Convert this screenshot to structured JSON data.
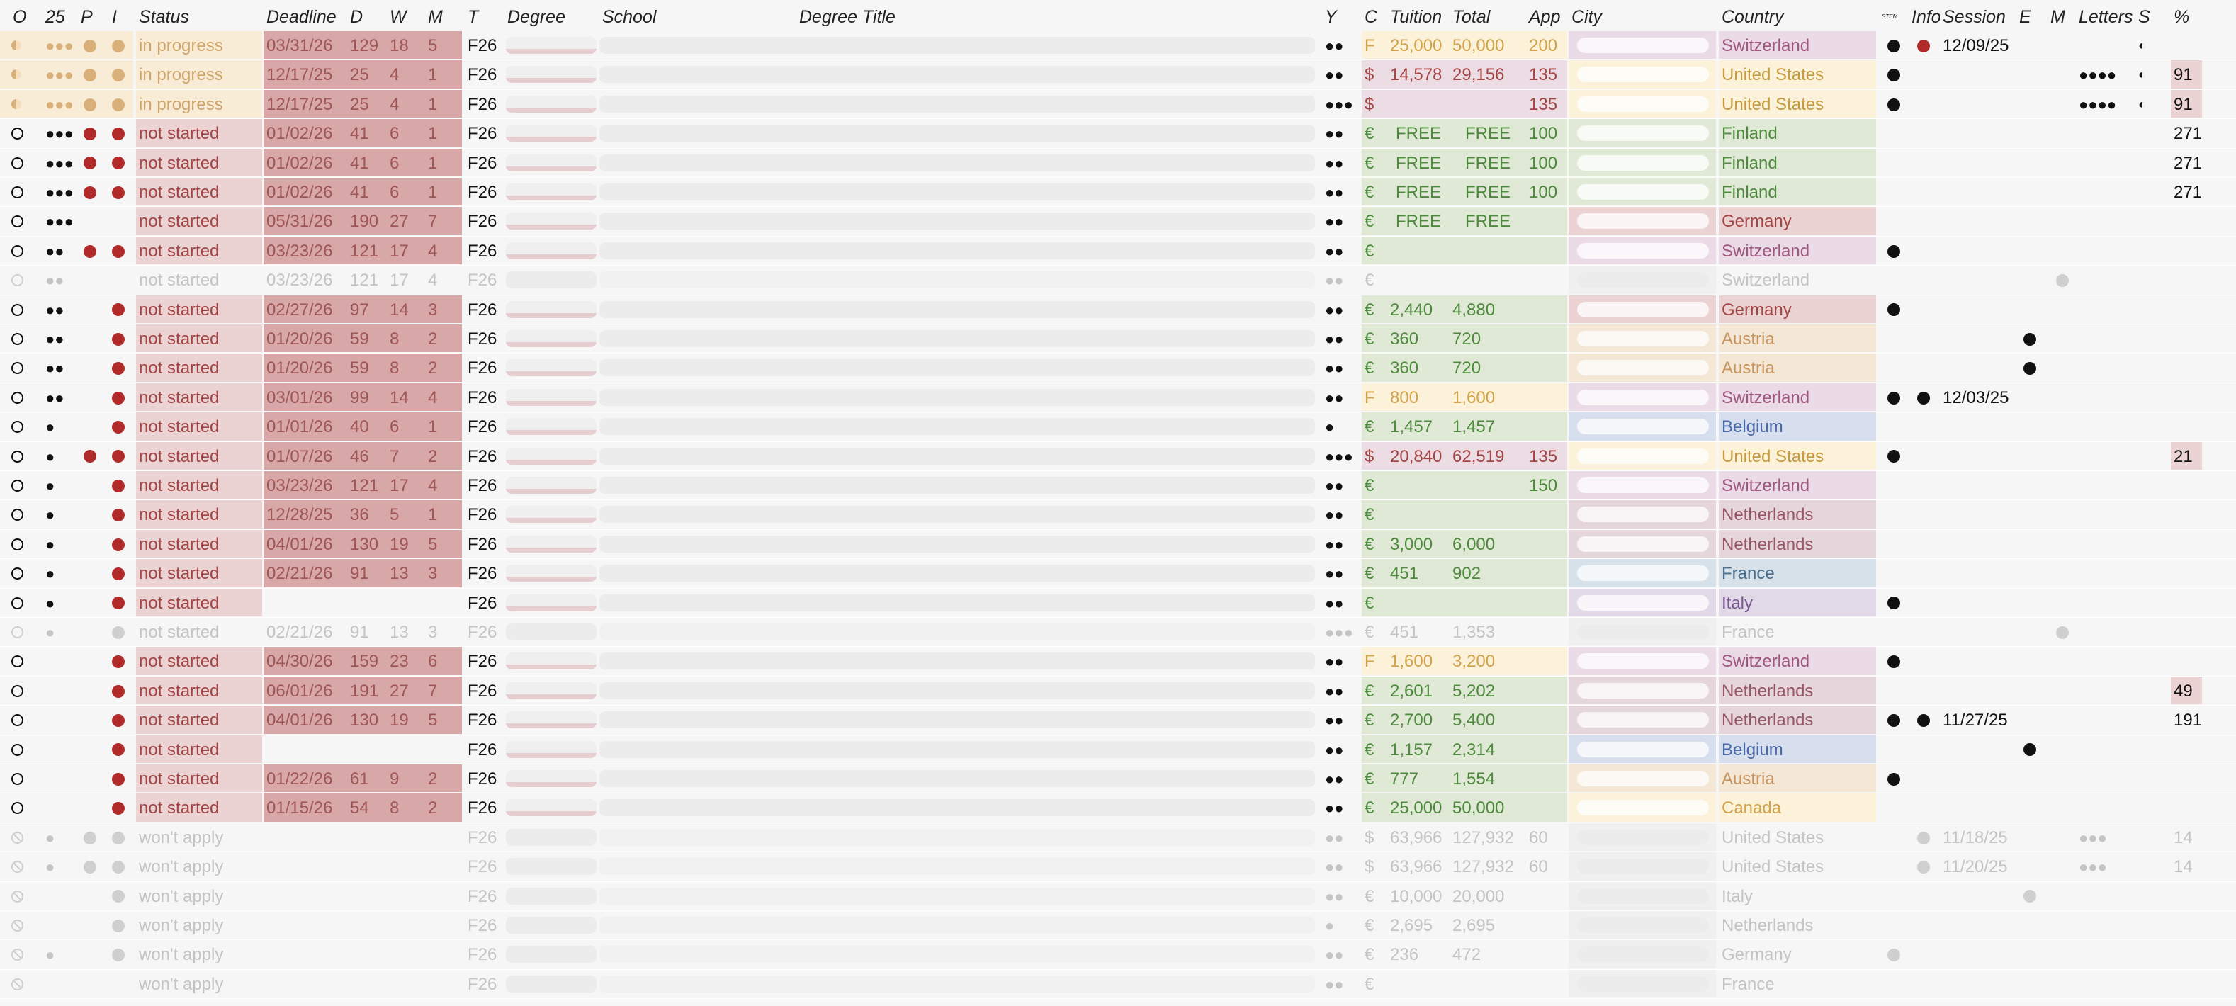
{
  "headers": [
    "O",
    "25",
    "P",
    "I",
    "Status",
    "Deadline",
    "D",
    "W",
    "M",
    "T",
    "Degree",
    "School",
    "Degree Title",
    "Y",
    "C",
    "Tuition",
    "Total",
    "App",
    "City",
    "Country",
    "STEM",
    "Info",
    "Session",
    "E",
    "M",
    "Letters",
    "S",
    "%"
  ],
  "colors": {
    "in_progress_bg": "#f8ecd7",
    "in_progress_text": "#cfa56a",
    "not_started_bg": "#ebd2d3",
    "not_started_text": "#a34545",
    "deadline_bg": "#d8a7a7",
    "green_bg": "#dfe9d5",
    "green_text": "#4e8a3d",
    "yellow_bg": "#fbf2d9",
    "yellow_text": "#d2a34b",
    "pink_bg": "#ecdde4",
    "red_dot": "#b02a2a",
    "tan_dot": "#d9b07a",
    "muted": "#c8c8c8",
    "switzerland_bg": "#eadbe6",
    "us_bg": "#fbf2d9",
    "finland_bg": "#dfe9d5",
    "germany_bg": "#ecd3d3",
    "austria_bg": "#f4e7d6",
    "belgium_bg": "#d7deee",
    "netherlands_bg": "#e5d6db",
    "france_bg": "#d7e1ea",
    "italy_bg": "#e2d9e8",
    "canada_bg": "#fbf2d9"
  },
  "rows": [
    {
      "o": "half-tan",
      "r25": "●●●",
      "p": "tan",
      "i": "tan",
      "status": "in progress",
      "kind": "ip",
      "deadline": "03/31/26",
      "d": "129",
      "w": "18",
      "m": "5",
      "t": "F26",
      "y": "●●",
      "c": "F",
      "tuition": "25,000",
      "total": "50,000",
      "app": "200",
      "country": "Switzerland",
      "country_key": "switzerland_bg",
      "stem": "●",
      "info": "red",
      "session": "12/09/25",
      "e": "",
      "mm": "",
      "letters": "",
      "s": "◐",
      "pct": "",
      "money": "yellow"
    },
    {
      "o": "half-tan",
      "r25": "●●●",
      "p": "tan",
      "i": "tan",
      "status": "in progress",
      "kind": "ip",
      "deadline": "12/17/25",
      "d": "25",
      "w": "4",
      "m": "1",
      "t": "F26",
      "y": "●●",
      "c": "$",
      "tuition": "14,578",
      "total": "29,156",
      "app": "135",
      "country": "United States",
      "country_key": "us_bg",
      "stem": "●",
      "info": "",
      "session": "",
      "e": "",
      "mm": "",
      "letters": "●●●●",
      "s": "◐",
      "pct": "91",
      "money": "pink"
    },
    {
      "o": "half-tan",
      "r25": "●●●",
      "p": "tan",
      "i": "tan",
      "status": "in progress",
      "kind": "ip",
      "deadline": "12/17/25",
      "d": "25",
      "w": "4",
      "m": "1",
      "t": "F26",
      "y": "●●●",
      "c": "$",
      "tuition": "",
      "total": "",
      "app": "135",
      "country": "United States",
      "country_key": "us_bg",
      "stem": "●",
      "info": "",
      "session": "",
      "e": "",
      "mm": "",
      "letters": "●●●●",
      "s": "◐",
      "pct": "91",
      "money": "pink"
    },
    {
      "o": "ring",
      "r25": "●●●",
      "p": "red",
      "i": "red",
      "status": "not started",
      "kind": "ns",
      "deadline": "01/02/26",
      "d": "41",
      "w": "6",
      "m": "1",
      "t": "F26",
      "y": "●●",
      "c": "€",
      "tuition": "FREE",
      "total": "FREE",
      "app": "100",
      "country": "Finland",
      "country_key": "finland_bg",
      "stem": "",
      "info": "",
      "session": "",
      "e": "",
      "mm": "",
      "letters": "",
      "s": "",
      "pct": "271",
      "money": "green"
    },
    {
      "o": "ring",
      "r25": "●●●",
      "p": "red",
      "i": "red",
      "status": "not started",
      "kind": "ns",
      "deadline": "01/02/26",
      "d": "41",
      "w": "6",
      "m": "1",
      "t": "F26",
      "y": "●●",
      "c": "€",
      "tuition": "FREE",
      "total": "FREE",
      "app": "100",
      "country": "Finland",
      "country_key": "finland_bg",
      "stem": "",
      "info": "",
      "session": "",
      "e": "",
      "mm": "",
      "letters": "",
      "s": "",
      "pct": "271",
      "money": "green"
    },
    {
      "o": "ring",
      "r25": "●●●",
      "p": "red",
      "i": "red",
      "status": "not started",
      "kind": "ns",
      "deadline": "01/02/26",
      "d": "41",
      "w": "6",
      "m": "1",
      "t": "F26",
      "y": "●●",
      "c": "€",
      "tuition": "FREE",
      "total": "FREE",
      "app": "100",
      "country": "Finland",
      "country_key": "finland_bg",
      "stem": "",
      "info": "",
      "session": "",
      "e": "",
      "mm": "",
      "letters": "",
      "s": "",
      "pct": "271",
      "money": "green"
    },
    {
      "o": "ring",
      "r25": "●●●",
      "p": "",
      "i": "",
      "status": "not started",
      "kind": "ns",
      "deadline": "05/31/26",
      "d": "190",
      "w": "27",
      "m": "7",
      "t": "F26",
      "y": "●●",
      "c": "€",
      "tuition": "FREE",
      "total": "FREE",
      "app": "",
      "country": "Germany",
      "country_key": "germany_bg",
      "stem": "",
      "info": "",
      "session": "",
      "e": "",
      "mm": "",
      "letters": "",
      "s": "",
      "pct": "",
      "money": "green"
    },
    {
      "o": "ring",
      "r25": "●●",
      "p": "red",
      "i": "red",
      "status": "not started",
      "kind": "ns",
      "deadline": "03/23/26",
      "d": "121",
      "w": "17",
      "m": "4",
      "t": "F26",
      "y": "●●",
      "c": "€",
      "tuition": "",
      "total": "",
      "app": "",
      "country": "Switzerland",
      "country_key": "switzerland_bg",
      "stem": "●",
      "info": "",
      "session": "",
      "e": "",
      "mm": "",
      "letters": "",
      "s": "",
      "pct": "",
      "money": "green"
    },
    {
      "o": "ring-muted",
      "r25": "●●",
      "p": "",
      "i": "",
      "status": "not started",
      "kind": "muted",
      "deadline": "03/23/26",
      "d": "121",
      "w": "17",
      "m": "4",
      "t": "F26",
      "y": "●●",
      "c": "€",
      "tuition": "",
      "total": "",
      "app": "",
      "country": "Switzerland",
      "country_key": "",
      "stem": "",
      "info": "",
      "session": "",
      "e": "",
      "mm": "●",
      "letters": "",
      "s": "",
      "pct": "",
      "money": "none"
    },
    {
      "o": "ring",
      "r25": "●●",
      "p": "",
      "i": "red",
      "status": "not started",
      "kind": "ns",
      "deadline": "02/27/26",
      "d": "97",
      "w": "14",
      "m": "3",
      "t": "F26",
      "y": "●●",
      "c": "€",
      "tuition": "2,440",
      "total": "4,880",
      "app": "",
      "country": "Germany",
      "country_key": "germany_bg",
      "stem": "●",
      "info": "",
      "session": "",
      "e": "",
      "mm": "",
      "letters": "",
      "s": "",
      "pct": "",
      "money": "green"
    },
    {
      "o": "ring",
      "r25": "●●",
      "p": "",
      "i": "red",
      "status": "not started",
      "kind": "ns",
      "deadline": "01/20/26",
      "d": "59",
      "w": "8",
      "m": "2",
      "t": "F26",
      "y": "●●",
      "c": "€",
      "tuition": "360",
      "total": "720",
      "app": "",
      "country": "Austria",
      "country_key": "austria_bg",
      "stem": "",
      "info": "",
      "session": "",
      "e": "●",
      "mm": "",
      "letters": "",
      "s": "",
      "pct": "",
      "money": "green"
    },
    {
      "o": "ring",
      "r25": "●●",
      "p": "",
      "i": "red",
      "status": "not started",
      "kind": "ns",
      "deadline": "01/20/26",
      "d": "59",
      "w": "8",
      "m": "2",
      "t": "F26",
      "y": "●●",
      "c": "€",
      "tuition": "360",
      "total": "720",
      "app": "",
      "country": "Austria",
      "country_key": "austria_bg",
      "stem": "",
      "info": "",
      "session": "",
      "e": "●",
      "mm": "",
      "letters": "",
      "s": "",
      "pct": "",
      "money": "green"
    },
    {
      "o": "ring",
      "r25": "●●",
      "p": "",
      "i": "red",
      "status": "not started",
      "kind": "ns",
      "deadline": "03/01/26",
      "d": "99",
      "w": "14",
      "m": "4",
      "t": "F26",
      "y": "●●",
      "c": "F",
      "tuition": "800",
      "total": "1,600",
      "app": "",
      "country": "Switzerland",
      "country_key": "switzerland_bg",
      "stem": "●",
      "info": "black",
      "session": "12/03/25",
      "e": "",
      "mm": "",
      "letters": "",
      "s": "",
      "pct": "",
      "money": "yellow"
    },
    {
      "o": "ring",
      "r25": "●",
      "p": "",
      "i": "red",
      "status": "not started",
      "kind": "ns",
      "deadline": "01/01/26",
      "d": "40",
      "w": "6",
      "m": "1",
      "t": "F26",
      "y": "●",
      "c": "€",
      "tuition": "1,457",
      "total": "1,457",
      "app": "",
      "country": "Belgium",
      "country_key": "belgium_bg",
      "stem": "",
      "info": "",
      "session": "",
      "e": "",
      "mm": "",
      "letters": "",
      "s": "",
      "pct": "",
      "money": "green"
    },
    {
      "o": "ring",
      "r25": "●",
      "p": "red",
      "i": "red",
      "status": "not started",
      "kind": "ns",
      "deadline": "01/07/26",
      "d": "46",
      "w": "7",
      "m": "2",
      "t": "F26",
      "y": "●●●",
      "c": "$",
      "tuition": "20,840",
      "total": "62,519",
      "app": "135",
      "country": "United States",
      "country_key": "us_bg",
      "stem": "●",
      "info": "",
      "session": "",
      "e": "",
      "mm": "",
      "letters": "",
      "s": "",
      "pct": "21",
      "money": "pink"
    },
    {
      "o": "ring",
      "r25": "●",
      "p": "",
      "i": "red",
      "status": "not started",
      "kind": "ns",
      "deadline": "03/23/26",
      "d": "121",
      "w": "17",
      "m": "4",
      "t": "F26",
      "y": "●●",
      "c": "€",
      "tuition": "",
      "total": "",
      "app": "150",
      "country": "Switzerland",
      "country_key": "switzerland_bg",
      "stem": "",
      "info": "",
      "session": "",
      "e": "",
      "mm": "",
      "letters": "",
      "s": "",
      "pct": "",
      "money": "green"
    },
    {
      "o": "ring",
      "r25": "●",
      "p": "",
      "i": "red",
      "status": "not started",
      "kind": "ns",
      "deadline": "12/28/25",
      "d": "36",
      "w": "5",
      "m": "1",
      "t": "F26",
      "y": "●●",
      "c": "€",
      "tuition": "",
      "total": "",
      "app": "",
      "country": "Netherlands",
      "country_key": "netherlands_bg",
      "stem": "",
      "info": "",
      "session": "",
      "e": "",
      "mm": "",
      "letters": "",
      "s": "",
      "pct": "",
      "money": "green"
    },
    {
      "o": "ring",
      "r25": "●",
      "p": "",
      "i": "red",
      "status": "not started",
      "kind": "ns",
      "deadline": "04/01/26",
      "d": "130",
      "w": "19",
      "m": "5",
      "t": "F26",
      "y": "●●",
      "c": "€",
      "tuition": "3,000",
      "total": "6,000",
      "app": "",
      "country": "Netherlands",
      "country_key": "netherlands_bg",
      "stem": "",
      "info": "",
      "session": "",
      "e": "",
      "mm": "",
      "letters": "",
      "s": "",
      "pct": "",
      "money": "green"
    },
    {
      "o": "ring",
      "r25": "●",
      "p": "",
      "i": "red",
      "status": "not started",
      "kind": "ns",
      "deadline": "02/21/26",
      "d": "91",
      "w": "13",
      "m": "3",
      "t": "F26",
      "y": "●●",
      "c": "€",
      "tuition": "451",
      "total": "902",
      "app": "",
      "country": "France",
      "country_key": "france_bg",
      "stem": "",
      "info": "",
      "session": "",
      "e": "",
      "mm": "",
      "letters": "",
      "s": "",
      "pct": "",
      "money": "green"
    },
    {
      "o": "ring",
      "r25": "●",
      "p": "",
      "i": "red",
      "status": "not started",
      "kind": "ns",
      "deadline": "",
      "d": "",
      "w": "",
      "m": "",
      "t": "F26",
      "y": "●●",
      "c": "€",
      "tuition": "",
      "total": "",
      "app": "",
      "country": "Italy",
      "country_key": "italy_bg",
      "stem": "●",
      "info": "",
      "session": "",
      "e": "",
      "mm": "",
      "letters": "",
      "s": "",
      "pct": "",
      "money": "green"
    },
    {
      "o": "ring-muted",
      "r25": "●",
      "p": "",
      "i": "muted",
      "status": "not started",
      "kind": "muted",
      "deadline": "02/21/26",
      "d": "91",
      "w": "13",
      "m": "3",
      "t": "F26",
      "y": "●●●",
      "c": "€",
      "tuition": "451",
      "total": "1,353",
      "app": "",
      "country": "France",
      "country_key": "",
      "stem": "",
      "info": "",
      "session": "",
      "e": "",
      "mm": "●",
      "letters": "",
      "s": "",
      "pct": "",
      "money": "none"
    },
    {
      "o": "ring",
      "r25": "",
      "p": "",
      "i": "red",
      "status": "not started",
      "kind": "ns",
      "deadline": "04/30/26",
      "d": "159",
      "w": "23",
      "m": "6",
      "t": "F26",
      "y": "●●",
      "c": "F",
      "tuition": "1,600",
      "total": "3,200",
      "app": "",
      "country": "Switzerland",
      "country_key": "switzerland_bg",
      "stem": "●",
      "info": "",
      "session": "",
      "e": "",
      "mm": "",
      "letters": "",
      "s": "",
      "pct": "",
      "money": "yellow"
    },
    {
      "o": "ring",
      "r25": "",
      "p": "",
      "i": "red",
      "status": "not started",
      "kind": "ns",
      "deadline": "06/01/26",
      "d": "191",
      "w": "27",
      "m": "7",
      "t": "F26",
      "y": "●●",
      "c": "€",
      "tuition": "2,601",
      "total": "5,202",
      "app": "",
      "country": "Netherlands",
      "country_key": "netherlands_bg",
      "stem": "",
      "info": "",
      "session": "",
      "e": "",
      "mm": "",
      "letters": "",
      "s": "",
      "pct": "49",
      "money": "green"
    },
    {
      "o": "ring",
      "r25": "",
      "p": "",
      "i": "red",
      "status": "not started",
      "kind": "ns",
      "deadline": "04/01/26",
      "d": "130",
      "w": "19",
      "m": "5",
      "t": "F26",
      "y": "●●",
      "c": "€",
      "tuition": "2,700",
      "total": "5,400",
      "app": "",
      "country": "Netherlands",
      "country_key": "netherlands_bg",
      "stem": "●",
      "info": "black",
      "session": "11/27/25",
      "e": "",
      "mm": "",
      "letters": "",
      "s": "",
      "pct": "191",
      "money": "green"
    },
    {
      "o": "ring",
      "r25": "",
      "p": "",
      "i": "red",
      "status": "not started",
      "kind": "ns",
      "deadline": "",
      "d": "",
      "w": "",
      "m": "",
      "t": "F26",
      "y": "●●",
      "c": "€",
      "tuition": "1,157",
      "total": "2,314",
      "app": "",
      "country": "Belgium",
      "country_key": "belgium_bg",
      "stem": "",
      "info": "",
      "session": "",
      "e": "●",
      "mm": "",
      "letters": "",
      "s": "",
      "pct": "",
      "money": "green"
    },
    {
      "o": "ring",
      "r25": "",
      "p": "",
      "i": "red",
      "status": "not started",
      "kind": "ns",
      "deadline": "01/22/26",
      "d": "61",
      "w": "9",
      "m": "2",
      "t": "F26",
      "y": "●●",
      "c": "€",
      "tuition": "777",
      "total": "1,554",
      "app": "",
      "country": "Austria",
      "country_key": "austria_bg",
      "stem": "●",
      "info": "",
      "session": "",
      "e": "",
      "mm": "",
      "letters": "",
      "s": "",
      "pct": "",
      "money": "green"
    },
    {
      "o": "ring",
      "r25": "",
      "p": "",
      "i": "red",
      "status": "not started",
      "kind": "ns",
      "deadline": "01/15/26",
      "d": "54",
      "w": "8",
      "m": "2",
      "t": "F26",
      "y": "●●",
      "c": "€",
      "tuition": "25,000",
      "total": "50,000",
      "app": "",
      "country": "Canada",
      "country_key": "canada_bg",
      "stem": "",
      "info": "",
      "session": "",
      "e": "",
      "mm": "",
      "letters": "",
      "s": "",
      "pct": "",
      "money": "green"
    },
    {
      "o": "banned",
      "r25": "●",
      "p": "muted",
      "i": "muted",
      "status": "won't apply",
      "kind": "wa",
      "deadline": "",
      "d": "",
      "w": "",
      "m": "",
      "t": "F26",
      "y": "●●",
      "c": "$",
      "tuition": "63,966",
      "total": "127,932",
      "app": "60",
      "country": "United States",
      "country_key": "",
      "stem": "",
      "info": "muted",
      "session": "11/18/25",
      "e": "",
      "mm": "",
      "letters": "●●●",
      "s": "",
      "pct": "14",
      "money": "none"
    },
    {
      "o": "banned",
      "r25": "●",
      "p": "muted",
      "i": "muted",
      "status": "won't apply",
      "kind": "wa",
      "deadline": "",
      "d": "",
      "w": "",
      "m": "",
      "t": "F26",
      "y": "●●",
      "c": "$",
      "tuition": "63,966",
      "total": "127,932",
      "app": "60",
      "country": "United States",
      "country_key": "",
      "stem": "",
      "info": "muted",
      "session": "11/20/25",
      "e": "",
      "mm": "",
      "letters": "●●●",
      "s": "",
      "pct": "14",
      "money": "none"
    },
    {
      "o": "banned",
      "r25": "",
      "p": "",
      "i": "muted",
      "status": "won't apply",
      "kind": "wa",
      "deadline": "",
      "d": "",
      "w": "",
      "m": "",
      "t": "F26",
      "y": "●●",
      "c": "€",
      "tuition": "10,000",
      "total": "20,000",
      "app": "",
      "country": "Italy",
      "country_key": "",
      "stem": "",
      "info": "",
      "session": "",
      "e": "●",
      "mm": "",
      "letters": "",
      "s": "",
      "pct": "",
      "money": "none"
    },
    {
      "o": "banned",
      "r25": "",
      "p": "",
      "i": "muted",
      "status": "won't apply",
      "kind": "wa",
      "deadline": "",
      "d": "",
      "w": "",
      "m": "",
      "t": "F26",
      "y": "●",
      "c": "€",
      "tuition": "2,695",
      "total": "2,695",
      "app": "",
      "country": "Netherlands",
      "country_key": "",
      "stem": "",
      "info": "",
      "session": "",
      "e": "",
      "mm": "",
      "letters": "",
      "s": "",
      "pct": "",
      "money": "none"
    },
    {
      "o": "banned",
      "r25": "●",
      "p": "",
      "i": "muted",
      "status": "won't apply",
      "kind": "wa",
      "deadline": "",
      "d": "",
      "w": "",
      "m": "",
      "t": "F26",
      "y": "●●",
      "c": "€",
      "tuition": "236",
      "total": "472",
      "app": "",
      "country": "Germany",
      "country_key": "",
      "stem": "●",
      "info": "",
      "session": "",
      "e": "",
      "mm": "",
      "letters": "",
      "s": "",
      "pct": "",
      "money": "none"
    },
    {
      "o": "banned",
      "r25": "",
      "p": "",
      "i": "",
      "status": "won't apply",
      "kind": "wa",
      "deadline": "",
      "d": "",
      "w": "",
      "m": "",
      "t": "F26",
      "y": "●●",
      "c": "€",
      "tuition": "",
      "total": "",
      "app": "",
      "country": "France",
      "country_key": "",
      "stem": "",
      "info": "",
      "session": "",
      "e": "",
      "mm": "",
      "letters": "",
      "s": "",
      "pct": "",
      "money": "none"
    }
  ]
}
